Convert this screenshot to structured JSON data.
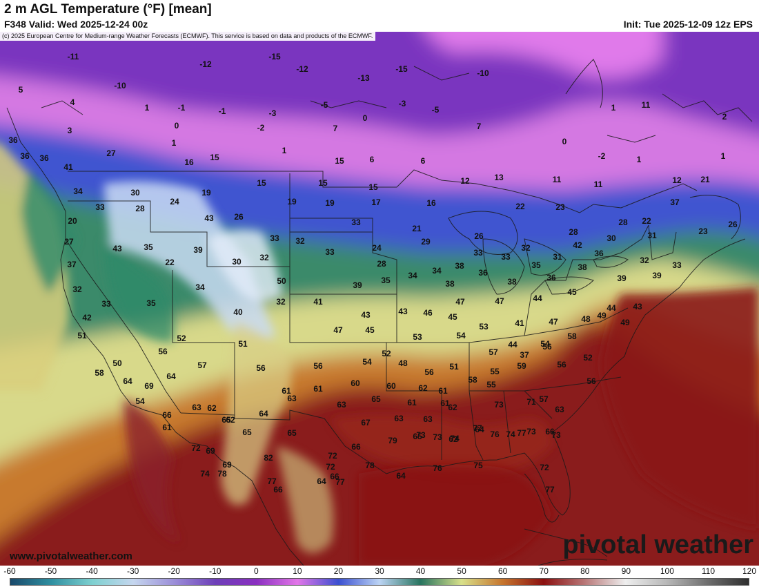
{
  "header": {
    "title": "2 m AGL Temperature (°F) [mean]",
    "valid": "F348 Valid: Wed 2025-12-24 00z",
    "init": "Init: Tue 2025-12-09 12z EPS"
  },
  "copyright": "(c) 2025 European Centre for Medium-range Weather Forecasts (ECMWF). This service is based on data and products of the ECMWF.",
  "footer": {
    "site": "www.pivotalweather.com",
    "brand": "pivotal weather"
  },
  "colorbar": {
    "units": "°F",
    "min": -60,
    "max": 120,
    "ticks": [
      "-60",
      "-50",
      "-40",
      "-30",
      "-20",
      "-10",
      "0",
      "10",
      "20",
      "30",
      "40",
      "50",
      "60",
      "70",
      "80",
      "90",
      "100",
      "110",
      "120"
    ],
    "stops": [
      {
        "v": -60,
        "c": "#1a4a6b"
      },
      {
        "v": -50,
        "c": "#2f8fa0"
      },
      {
        "v": -40,
        "c": "#7ed0d0"
      },
      {
        "v": -30,
        "c": "#c5d6ee"
      },
      {
        "v": -20,
        "c": "#9b8ed8"
      },
      {
        "v": -10,
        "c": "#6d3fb8"
      },
      {
        "v": 0,
        "c": "#8a2fc0"
      },
      {
        "v": 10,
        "c": "#e276e8"
      },
      {
        "v": 20,
        "c": "#3a4fd0"
      },
      {
        "v": 30,
        "c": "#bcd4f4"
      },
      {
        "v": 40,
        "c": "#28745f"
      },
      {
        "v": 50,
        "c": "#d8e08a"
      },
      {
        "v": 60,
        "c": "#c6752d"
      },
      {
        "v": 70,
        "c": "#8a1010"
      },
      {
        "v": 80,
        "c": "#b87777"
      },
      {
        "v": 90,
        "c": "#eeeeee"
      },
      {
        "v": 100,
        "c": "#b8b8b8"
      },
      {
        "v": 110,
        "c": "#6e6e6e"
      },
      {
        "v": 120,
        "c": "#2e2e2e"
      }
    ]
  },
  "values": [
    "-11",
    "-15",
    "-12",
    "-12",
    "-13",
    "-15",
    "-10",
    "5",
    "-10",
    "4",
    "1",
    "-1",
    "-1",
    "-3",
    "-5",
    "-3",
    "-5",
    "0",
    "1",
    "11",
    "3",
    "0",
    "-2",
    "7",
    "7",
    "1",
    "1",
    "0",
    "-2",
    "1",
    "2",
    "1",
    "15",
    "36",
    "27",
    "16",
    "15",
    "6",
    "6",
    "11",
    "11",
    "15",
    "15",
    "12",
    "21",
    "36",
    "36",
    "41",
    "34",
    "30",
    "19",
    "15",
    "12",
    "13",
    "19",
    "17",
    "37",
    "33",
    "28",
    "24",
    "19",
    "16",
    "22",
    "23",
    "20",
    "43",
    "26",
    "33",
    "21",
    "24",
    "28",
    "22",
    "23",
    "26",
    "27",
    "43",
    "35",
    "39",
    "33",
    "32",
    "32",
    "28",
    "26",
    "30",
    "29",
    "31",
    "42",
    "37",
    "22",
    "30",
    "32",
    "33",
    "28",
    "33",
    "33",
    "35",
    "31",
    "36",
    "32",
    "33",
    "34",
    "34",
    "38",
    "36",
    "32",
    "34",
    "50",
    "39",
    "35",
    "38",
    "38",
    "36",
    "38",
    "39",
    "39",
    "33",
    "35",
    "40",
    "32",
    "41",
    "43",
    "43",
    "46",
    "47",
    "47",
    "44",
    "45",
    "44",
    "43",
    "42",
    "45",
    "53",
    "41",
    "47",
    "48",
    "49",
    "49",
    "51",
    "52",
    "51",
    "47",
    "45",
    "53",
    "54",
    "44",
    "54",
    "58",
    "50",
    "56",
    "57",
    "56",
    "56",
    "54",
    "52",
    "48",
    "51",
    "57",
    "37",
    "56",
    "52",
    "58",
    "56",
    "58",
    "55",
    "56",
    "56",
    "64",
    "69",
    "64",
    "61",
    "61",
    "60",
    "60",
    "62",
    "61",
    "55",
    "59",
    "57",
    "54",
    "66",
    "63",
    "62",
    "65",
    "64",
    "63",
    "63",
    "65",
    "61",
    "61",
    "62",
    "73",
    "71",
    "63",
    "61",
    "62",
    "65",
    "65",
    "67",
    "63",
    "63",
    "62",
    "64",
    "77",
    "66",
    "72",
    "69",
    "66",
    "79",
    "65",
    "74",
    "77",
    "74",
    "73",
    "73",
    "69",
    "72",
    "78",
    "73",
    "73",
    "76",
    "82",
    "72",
    "77",
    "64",
    "74",
    "66",
    "64",
    "76",
    "75",
    "72",
    "77",
    "78",
    "66",
    "77"
  ]
}
